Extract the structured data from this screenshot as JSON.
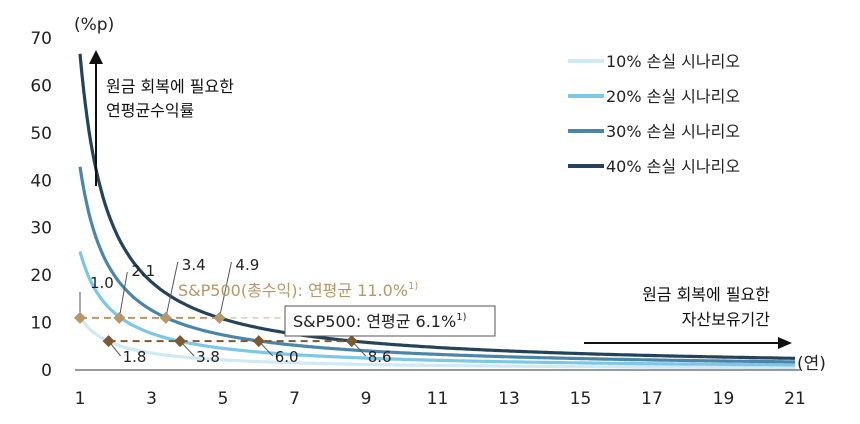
{
  "chart_data": {
    "type": "line",
    "x_unit": "(연)",
    "y_unit": "(%p)",
    "xlim": [
      1,
      21
    ],
    "ylim": [
      0,
      70
    ],
    "x_ticks": [
      1,
      3,
      5,
      7,
      9,
      11,
      13,
      15,
      17,
      19,
      21
    ],
    "y_ticks": [
      0,
      10,
      20,
      30,
      40,
      50,
      60,
      70
    ],
    "grid": false,
    "legend_position": "top-right",
    "series": [
      {
        "name": "10% 손실 시나리오",
        "color": "#cfe9f5",
        "loss": 0.1
      },
      {
        "name": "20% 손실 시나리오",
        "color": "#7cc6e6",
        "loss": 0.2
      },
      {
        "name": "30% 손실 시나리오",
        "color": "#4b86aa",
        "loss": 0.3
      },
      {
        "name": "40% 손실 시나리오",
        "color": "#24435a",
        "loss": 0.4
      }
    ],
    "annotation_up": [
      "원금 회복에 필요한",
      "연평균수익률"
    ],
    "annotation_right": [
      "원금 회복에 필요한",
      "자산보유기간"
    ],
    "sp500_total": {
      "label": "S&P500(총수익): 연평균 11.0%",
      "note": "1)",
      "rate": 11.0,
      "color": "#b5976a",
      "points": [
        {
          "x": 1.0,
          "label": "1.0"
        },
        {
          "x": 2.1,
          "label": "2.1"
        },
        {
          "x": 3.4,
          "label": "3.4"
        },
        {
          "x": 4.9,
          "label": "4.9"
        }
      ]
    },
    "sp500_price": {
      "label": "S&P500: 연평균 6.1%",
      "note": "1)",
      "rate": 6.1,
      "color": "#7a5a32",
      "points": [
        {
          "x": 1.8,
          "label": "1.8"
        },
        {
          "x": 3.8,
          "label": "3.8"
        },
        {
          "x": 6.0,
          "label": "6.0"
        },
        {
          "x": 8.6,
          "label": "8.6"
        }
      ]
    }
  }
}
